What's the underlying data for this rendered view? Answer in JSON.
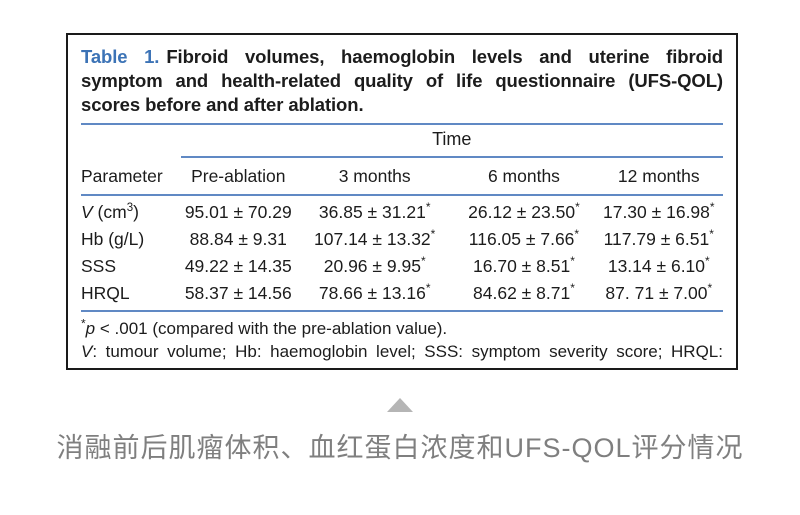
{
  "colors": {
    "rule_blue": "#6089c4",
    "table_label_blue": "#3c73b6",
    "text": "#1c1c1c",
    "caption_grey": "#7f7f7f",
    "triangle_grey": "#b5b5b5"
  },
  "table": {
    "title": {
      "label": "Table 1.",
      "text": "Fibroid volumes, haemoglobin levels and uterine fibroid symptom and health-related quality of life questionnaire (UFS-QOL) scores before and after ablation."
    },
    "time_header": "Time",
    "columns": [
      "Parameter",
      "Pre-ablation",
      "3 months",
      "6 months",
      "12 months"
    ],
    "rows": [
      {
        "param": {
          "italic": "V",
          "pre": " (cm",
          "sup": "3",
          "post": ")"
        },
        "values": [
          {
            "v": "95.01 ± 70.29"
          },
          {
            "v": "36.85 ± 31.21",
            "star": "*"
          },
          {
            "v": "26.12 ± 23.50",
            "star": "*"
          },
          {
            "v": "17.30 ± 16.98",
            "star": "*"
          }
        ]
      },
      {
        "param": {
          "pre": "Hb (g/L)"
        },
        "values": [
          {
            "v": "88.84 ± 9.31"
          },
          {
            "v": "107.14 ± 13.32",
            "star": "*"
          },
          {
            "v": "116.05 ± 7.66",
            "star": "*"
          },
          {
            "v": "117.79 ± 6.51",
            "star": "*"
          }
        ]
      },
      {
        "param": {
          "pre": "SSS"
        },
        "values": [
          {
            "v": "49.22 ± 14.35"
          },
          {
            "v": "20.96 ± 9.95",
            "star": "*"
          },
          {
            "v": "16.70 ± 8.51",
            "star": "*"
          },
          {
            "v": "13.14 ± 6.10",
            "star": "*"
          }
        ]
      },
      {
        "param": {
          "pre": "HRQL"
        },
        "values": [
          {
            "v": "58.37 ± 14.56"
          },
          {
            "v": "78.66 ± 13.16",
            "star": "*"
          },
          {
            "v": "84.62 ± 8.71",
            "star": "*"
          },
          {
            "v": "87. 71 ± 7.00",
            "star": "*"
          }
        ]
      }
    ],
    "footnotes": {
      "line1": {
        "sup": "*",
        "italic": "p",
        "text": " < .001 (compared with the pre-ablation value)."
      },
      "line2": {
        "italic": "V",
        "text": ": tumour volume; Hb: haemoglobin level; SSS: symptom severity score; HRQL: health-related quality of life score."
      }
    }
  },
  "caption": {
    "text": "消融前后肌瘤体积、血红蛋白浓度和UFS-QOL评分情况"
  }
}
